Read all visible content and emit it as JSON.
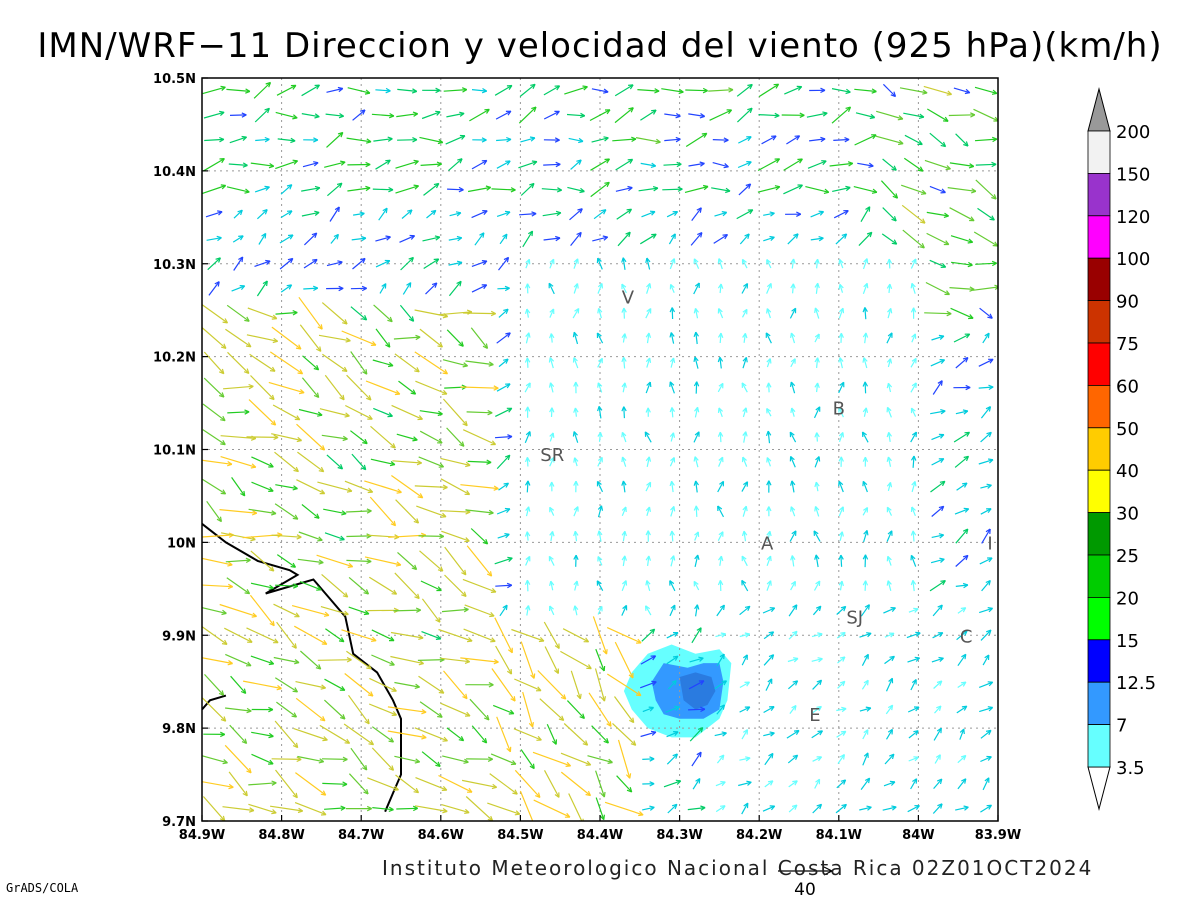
{
  "title": "IMN/WRF−11 Direccion y velocidad del viento (925 hPa)(km/h)",
  "footer": "Instituto Meteorologico Nacional Costa Rica 02Z01OCT2024",
  "credit": "GrADS/COLA",
  "reference_vector": {
    "label": "40",
    "speed": 40
  },
  "map": {
    "lon_range": [
      -84.9,
      -83.9
    ],
    "lat_range": [
      9.7,
      10.5
    ],
    "grid": "dotted",
    "x_ticks": [
      {
        "lon": -84.9,
        "label": "84.9W"
      },
      {
        "lon": -84.8,
        "label": "84.8W"
      },
      {
        "lon": -84.7,
        "label": "84.7W"
      },
      {
        "lon": -84.6,
        "label": "84.6W"
      },
      {
        "lon": -84.5,
        "label": "84.5W"
      },
      {
        "lon": -84.4,
        "label": "84.4W"
      },
      {
        "lon": -84.3,
        "label": "84.3W"
      },
      {
        "lon": -84.2,
        "label": "84.2W"
      },
      {
        "lon": -84.1,
        "label": "84.1W"
      },
      {
        "lon": -84.0,
        "label": "84W"
      },
      {
        "lon": -83.9,
        "label": "83.9W"
      }
    ],
    "y_ticks": [
      {
        "lat": 10.5,
        "label": "10.5N"
      },
      {
        "lat": 10.4,
        "label": "10.4N"
      },
      {
        "lat": 10.3,
        "label": "10.3N"
      },
      {
        "lat": 10.2,
        "label": "10.2N"
      },
      {
        "lat": 10.1,
        "label": "10.1N"
      },
      {
        "lat": 10.0,
        "label": "10N"
      },
      {
        "lat": 9.9,
        "label": "9.9N"
      },
      {
        "lat": 9.8,
        "label": "9.8N"
      },
      {
        "lat": 9.7,
        "label": "9.7N"
      }
    ],
    "place_labels": [
      {
        "label": "V",
        "lon": -84.365,
        "lat": 10.265
      },
      {
        "label": "B",
        "lon": -84.1,
        "lat": 10.145
      },
      {
        "label": "SR",
        "lon": -84.46,
        "lat": 10.095
      },
      {
        "label": "A",
        "lon": -84.19,
        "lat": 10.0
      },
      {
        "label": "I",
        "lon": -83.91,
        "lat": 10.0
      },
      {
        "label": "SJ",
        "lon": -84.08,
        "lat": 9.92
      },
      {
        "label": "C",
        "lon": -83.94,
        "lat": 9.9
      },
      {
        "label": "E",
        "lon": -84.13,
        "lat": 9.815
      }
    ],
    "coastline": [
      [
        -84.9,
        10.02
      ],
      [
        -84.87,
        10.0
      ],
      [
        -84.83,
        9.98
      ],
      [
        -84.79,
        9.97
      ],
      [
        -84.78,
        9.965
      ],
      [
        -84.82,
        9.945
      ],
      [
        -84.76,
        9.96
      ],
      [
        -84.74,
        9.94
      ],
      [
        -84.72,
        9.92
      ],
      [
        -84.71,
        9.88
      ],
      [
        -84.68,
        9.86
      ],
      [
        -84.66,
        9.83
      ],
      [
        -84.65,
        9.81
      ],
      [
        -84.65,
        9.75
      ],
      [
        -84.66,
        9.73
      ],
      [
        -84.67,
        9.71
      ]
    ],
    "coastline_small": [
      [
        -84.9,
        9.82
      ],
      [
        -84.89,
        9.83
      ],
      [
        -84.87,
        9.835
      ]
    ],
    "shaded_zones": [
      {
        "level": 3.5,
        "points": [
          [
            -84.34,
            9.88
          ],
          [
            -84.31,
            9.89
          ],
          [
            -84.28,
            9.88
          ],
          [
            -84.25,
            9.885
          ],
          [
            -84.235,
            9.87
          ],
          [
            -84.24,
            9.83
          ],
          [
            -84.25,
            9.81
          ],
          [
            -84.28,
            9.79
          ],
          [
            -84.31,
            9.79
          ],
          [
            -84.34,
            9.8
          ],
          [
            -84.36,
            9.82
          ],
          [
            -84.37,
            9.84
          ],
          [
            -84.36,
            9.86
          ]
        ]
      },
      {
        "level": 7,
        "points": [
          [
            -84.32,
            9.87
          ],
          [
            -84.29,
            9.865
          ],
          [
            -84.27,
            9.87
          ],
          [
            -84.25,
            9.87
          ],
          [
            -84.245,
            9.85
          ],
          [
            -84.25,
            9.82
          ],
          [
            -84.27,
            9.81
          ],
          [
            -84.3,
            9.81
          ],
          [
            -84.32,
            9.815
          ],
          [
            -84.33,
            9.83
          ],
          [
            -84.335,
            9.85
          ]
        ]
      },
      {
        "level": 12.5,
        "points": [
          [
            -84.3,
            9.855
          ],
          [
            -84.28,
            9.86
          ],
          [
            -84.26,
            9.855
          ],
          [
            -84.255,
            9.84
          ],
          [
            -84.265,
            9.825
          ],
          [
            -84.28,
            9.82
          ],
          [
            -84.295,
            9.83
          ]
        ]
      }
    ]
  },
  "colorbar": {
    "labels": [
      "200",
      "150",
      "120",
      "100",
      "90",
      "75",
      "60",
      "50",
      "40",
      "30",
      "25",
      "20",
      "15",
      "12.5",
      "7",
      "3.5"
    ],
    "bands": [
      {
        "color": "#f2f2f2"
      },
      {
        "color": "#9933cc"
      },
      {
        "color": "#ff00ff"
      },
      {
        "color": "#990000"
      },
      {
        "color": "#cc3300"
      },
      {
        "color": "#ff0000"
      },
      {
        "color": "#ff6600"
      },
      {
        "color": "#ffcc00"
      },
      {
        "color": "#ffff00"
      },
      {
        "color": "#009900"
      },
      {
        "color": "#00cc00"
      },
      {
        "color": "#00ff00"
      },
      {
        "color": "#0000ff"
      },
      {
        "color": "#3399ff"
      },
      {
        "color": "#66ffff"
      }
    ],
    "top_arrow_color": "#999999",
    "bottom_arrow_color": "#ffffff"
  },
  "vector_regions": [
    {
      "name": "northern-plains",
      "lon": [
        -84.9,
        -84.0
      ],
      "lat": [
        10.38,
        10.5
      ],
      "dir_deg": 15,
      "speed": 18
    },
    {
      "name": "northeast-flow",
      "lon": [
        -84.05,
        -83.9
      ],
      "lat": [
        10.22,
        10.5
      ],
      "dir_deg": -20,
      "speed": 22
    },
    {
      "name": "mountains-calm",
      "lon": [
        -84.5,
        -84.0
      ],
      "lat": [
        9.92,
        10.3
      ],
      "dir_deg": 90,
      "speed": 6
    },
    {
      "name": "pacific-inflow",
      "lon": [
        -84.9,
        -84.55
      ],
      "lat": [
        9.7,
        10.25
      ],
      "dir_deg": -25,
      "speed": 32
    },
    {
      "name": "gulf-southerly",
      "lon": [
        -84.55,
        -84.35
      ],
      "lat": [
        9.7,
        9.9
      ],
      "dir_deg": -45,
      "speed": 35
    },
    {
      "name": "central-valley",
      "lon": [
        -84.25,
        -83.9
      ],
      "lat": [
        9.7,
        9.95
      ],
      "dir_deg": 40,
      "speed": 8
    }
  ]
}
